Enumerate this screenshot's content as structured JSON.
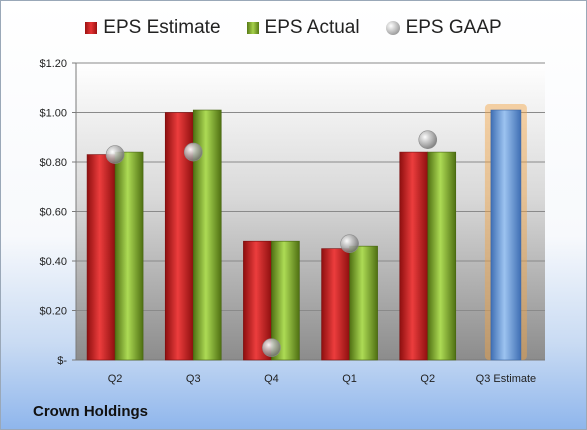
{
  "company": "Crown Holdings",
  "colors": {
    "estimate": "#d42424",
    "actual": "#8dbb34",
    "gaap": "#a8a8a8",
    "projection": "#6f9fdc",
    "projection_glow": "#f5a442"
  },
  "chart_data": {
    "type": "bar",
    "categories": [
      "Q2",
      "Q3",
      "Q4",
      "Q1",
      "Q2",
      "Q3 Estimate"
    ],
    "series": [
      {
        "name": "EPS Estimate",
        "values": [
          0.83,
          1.0,
          0.48,
          0.45,
          0.84,
          null
        ]
      },
      {
        "name": "EPS Actual",
        "values": [
          0.84,
          1.01,
          0.48,
          0.46,
          0.84,
          null
        ]
      },
      {
        "name": "EPS GAAP",
        "type": "scatter",
        "values": [
          0.83,
          0.84,
          0.05,
          0.47,
          0.89,
          null
        ]
      }
    ],
    "projection": {
      "category": "Q3 Estimate",
      "value": 1.01
    },
    "y_ticks": [
      "$-",
      "$0.20",
      "$0.40",
      "$0.60",
      "$0.80",
      "$1.00",
      "$1.20"
    ],
    "ylim": [
      0,
      1.2
    ],
    "grid": true,
    "legend": "top-center",
    "title": "",
    "xlabel": "",
    "ylabel": ""
  }
}
